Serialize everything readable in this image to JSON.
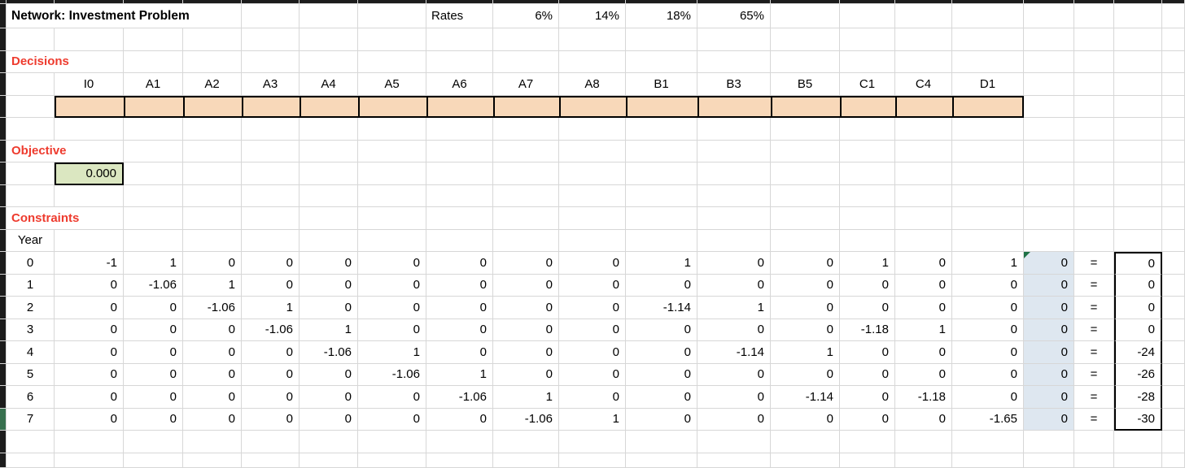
{
  "title": "Network: Investment Problem",
  "rates": {
    "label": "Rates",
    "values": [
      "6%",
      "14%",
      "18%",
      "65%"
    ]
  },
  "sections": {
    "decisions": "Decisions",
    "objective": "Objective",
    "constraints": "Constraints"
  },
  "decision_headers": [
    "I0",
    "A1",
    "A2",
    "A3",
    "A4",
    "A5",
    "A6",
    "A7",
    "A8",
    "B1",
    "B3",
    "B5",
    "C1",
    "C4",
    "D1"
  ],
  "decision_values": [
    "",
    "",
    "",
    "",
    "",
    "",
    "",
    "",
    "",
    "",
    "",
    "",
    "",
    "",
    ""
  ],
  "objective_value": "0.000",
  "year_label": "Year",
  "constraint_rows": [
    {
      "year": "0",
      "coeffs": [
        "-1",
        "1",
        "0",
        "0",
        "0",
        "0",
        "0",
        "0",
        "0",
        "1",
        "0",
        "0",
        "1",
        "0",
        "1"
      ],
      "aux": "0",
      "rel": "=",
      "rhs": "0"
    },
    {
      "year": "1",
      "coeffs": [
        "0",
        "-1.06",
        "1",
        "0",
        "0",
        "0",
        "0",
        "0",
        "0",
        "0",
        "0",
        "0",
        "0",
        "0",
        "0"
      ],
      "aux": "0",
      "rel": "=",
      "rhs": "0"
    },
    {
      "year": "2",
      "coeffs": [
        "0",
        "0",
        "-1.06",
        "1",
        "0",
        "0",
        "0",
        "0",
        "0",
        "-1.14",
        "1",
        "0",
        "0",
        "0",
        "0"
      ],
      "aux": "0",
      "rel": "=",
      "rhs": "0"
    },
    {
      "year": "3",
      "coeffs": [
        "0",
        "0",
        "0",
        "-1.06",
        "1",
        "0",
        "0",
        "0",
        "0",
        "0",
        "0",
        "0",
        "-1.18",
        "1",
        "0"
      ],
      "aux": "0",
      "rel": "=",
      "rhs": "0"
    },
    {
      "year": "4",
      "coeffs": [
        "0",
        "0",
        "0",
        "0",
        "-1.06",
        "1",
        "0",
        "0",
        "0",
        "0",
        "-1.14",
        "1",
        "0",
        "0",
        "0"
      ],
      "aux": "0",
      "rel": "=",
      "rhs": "-24"
    },
    {
      "year": "5",
      "coeffs": [
        "0",
        "0",
        "0",
        "0",
        "0",
        "-1.06",
        "1",
        "0",
        "0",
        "0",
        "0",
        "0",
        "0",
        "0",
        "0"
      ],
      "aux": "0",
      "rel": "=",
      "rhs": "-26"
    },
    {
      "year": "6",
      "coeffs": [
        "0",
        "0",
        "0",
        "0",
        "0",
        "0",
        "-1.06",
        "1",
        "0",
        "0",
        "0",
        "-1.14",
        "0",
        "-1.18",
        "0"
      ],
      "aux": "0",
      "rel": "=",
      "rhs": "-28"
    },
    {
      "year": "7",
      "coeffs": [
        "0",
        "0",
        "0",
        "0",
        "0",
        "0",
        "0",
        "-1.06",
        "1",
        "0",
        "0",
        "0",
        "0",
        "0",
        "-1.65"
      ],
      "aux": "0",
      "rel": "=",
      "rhs": "-30"
    }
  ],
  "colors": {
    "decision_fill": "#F8D8B9",
    "objective_fill": "#DBE7C1",
    "aux_fill": "#DEE7F0",
    "section_label": "#EE3B2E",
    "flag_indicator": "#1E7145",
    "row_marker": "#37704E"
  }
}
